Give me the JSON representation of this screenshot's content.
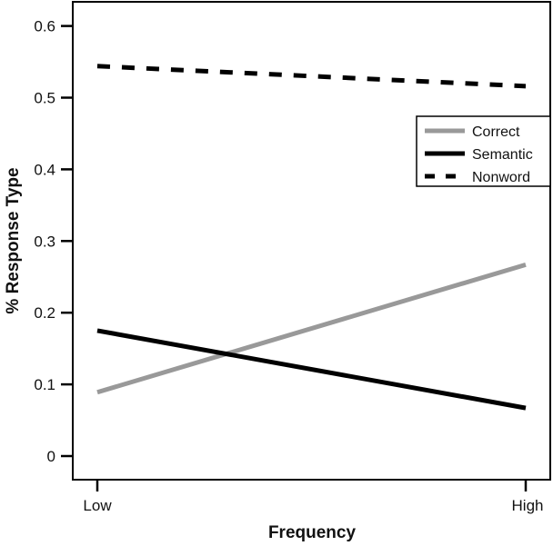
{
  "chart_data": {
    "type": "line",
    "title": "",
    "xlabel": "Frequency",
    "ylabel": "% Response Type",
    "categories": [
      "Low",
      "High"
    ],
    "ylim": [
      -0.03,
      0.63
    ],
    "yticks": [
      0,
      0.1,
      0.2,
      0.3,
      0.4,
      0.5,
      0.6
    ],
    "ytick_labels": [
      "0",
      "0.1",
      "0.2",
      "0.3",
      "0.4",
      "0.5",
      "0.6"
    ],
    "grid": false,
    "legend_position": "right",
    "series": [
      {
        "name": "Correct",
        "values": [
          0.089,
          0.267
        ],
        "color": "#999999",
        "style": "solid"
      },
      {
        "name": "Semantic",
        "values": [
          0.175,
          0.067
        ],
        "color": "#000000",
        "style": "solid"
      },
      {
        "name": "Nonword",
        "values": [
          0.544,
          0.516
        ],
        "color": "#000000",
        "style": "dashed"
      }
    ]
  }
}
